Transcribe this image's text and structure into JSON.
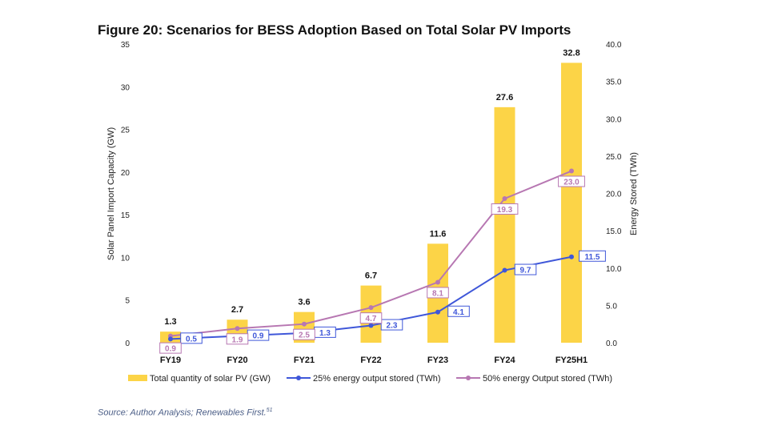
{
  "figure": {
    "title": "Figure 20: Scenarios for BESS Adoption Based on Total Solar PV Imports",
    "source": "Source: Author Analysis; Renewables First.",
    "source_note": "51"
  },
  "colors": {
    "bar": "#FCD447",
    "line25": "#3F57D9",
    "line50": "#B777B2",
    "axis_text": "#222222"
  },
  "chart_data": {
    "type": "bar",
    "categories": [
      "FY19",
      "FY20",
      "FY21",
      "FY22",
      "FY23",
      "FY24",
      "FY25H1"
    ],
    "bar_labels": [
      "1.3",
      "2.7",
      "3.6",
      "6.7",
      "11.6",
      "27.6",
      "32.8"
    ],
    "series": [
      {
        "name": "Total quantity of solar PV (GW)",
        "type": "bar",
        "axis": "left",
        "values": [
          1.3,
          2.7,
          3.6,
          6.7,
          11.6,
          27.6,
          32.8
        ]
      },
      {
        "name": "25% energy output stored (TWh)",
        "type": "line",
        "axis": "right",
        "values": [
          0.5,
          0.9,
          1.3,
          2.3,
          4.1,
          9.7,
          11.5
        ],
        "labels": [
          "0.5",
          "0.9",
          "1.3",
          "2.3",
          "4.1",
          "9.7",
          "11.5"
        ]
      },
      {
        "name": "50% energy Output stored (TWh)",
        "type": "line",
        "axis": "right",
        "values": [
          0.9,
          1.9,
          2.5,
          4.7,
          8.1,
          19.3,
          23.0
        ],
        "labels": [
          "0.9",
          "1.9",
          "2.5",
          "4.7",
          "8.1",
          "19.3",
          "23.0"
        ]
      }
    ],
    "ylabel": "Solar Panel Import Capacity (GW)",
    "ylabel_right": "Energy Stored (TWh)",
    "ylim": [
      0,
      35
    ],
    "yticks": [
      0,
      5,
      10,
      15,
      20,
      25,
      30,
      35
    ],
    "ytick_labels": [
      "0",
      "5",
      "10",
      "15",
      "20",
      "25",
      "30",
      "35"
    ],
    "ylim_right": [
      0,
      40
    ],
    "yticks_right": [
      0,
      5,
      10,
      15,
      20,
      25,
      30,
      35,
      40
    ],
    "ytick_labels_right": [
      "0.0",
      "5.0",
      "10.0",
      "15.0",
      "20.0",
      "25.0",
      "30.0",
      "35.0",
      "40.0"
    ],
    "grid": false,
    "legend_position": "bottom"
  }
}
